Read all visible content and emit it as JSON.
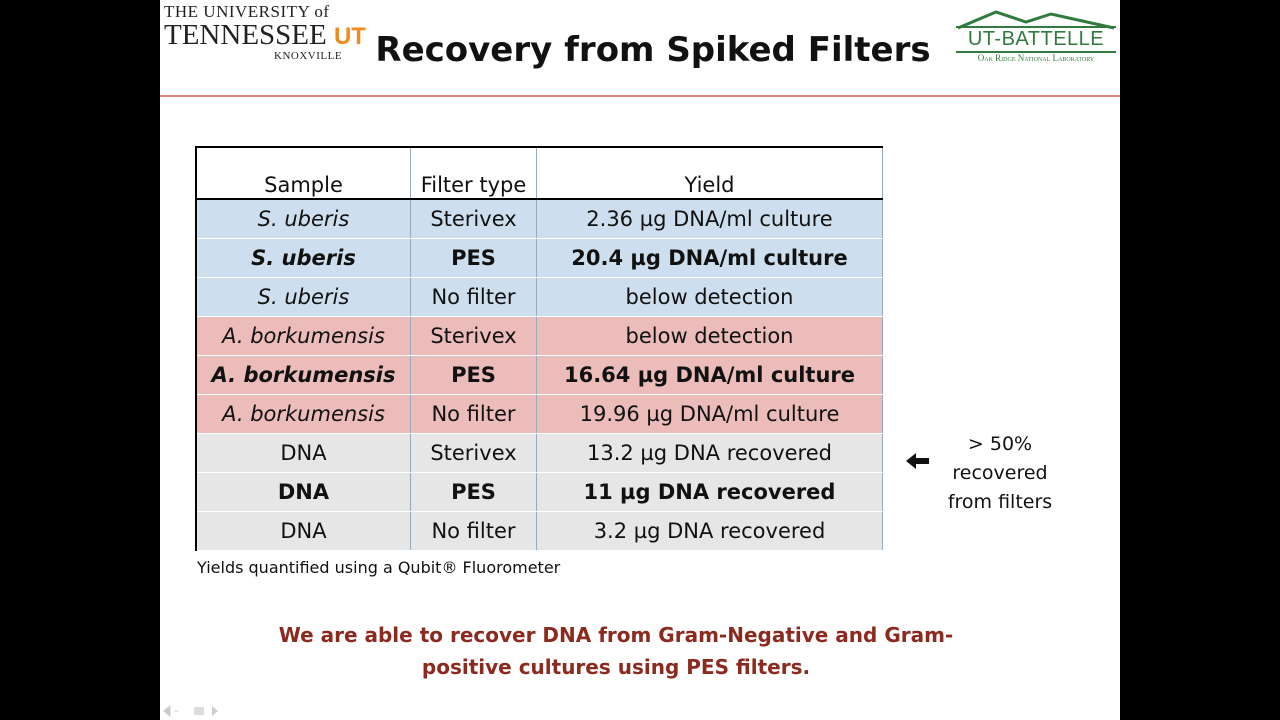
{
  "header": {
    "title": "Recovery from Spiked Filters",
    "left_logo": {
      "line1": "THE UNIVERSITY of",
      "line2": "TENNESSEE",
      "mark": "UT",
      "line3": "KNOXVILLE"
    },
    "right_logo": {
      "name": "UT-BATTELLE",
      "subtitle": "Oak Ridge National Laboratory"
    }
  },
  "table": {
    "columns": [
      "Sample",
      "Filter type",
      "Yield"
    ],
    "rows": [
      [
        "S. uberis",
        "Sterivex",
        "2.36 µg DNA/ml culture"
      ],
      [
        "S. uberis",
        "PES",
        "20.4 µg DNA/ml culture"
      ],
      [
        "S. uberis",
        "No filter",
        "below detection"
      ],
      [
        "A. borkumensis",
        "Sterivex",
        "below detection"
      ],
      [
        "A. borkumensis",
        "PES",
        "16.64 µg DNA/ml culture"
      ],
      [
        "A. borkumensis",
        "No filter",
        "19.96 µg DNA/ml culture"
      ],
      [
        "DNA",
        "Sterivex",
        "13.2 µg DNA recovered"
      ],
      [
        "DNA",
        "PES",
        "11 µg DNA recovered"
      ],
      [
        "DNA",
        "No filter",
        "3.2 µg DNA recovered"
      ]
    ]
  },
  "footnote": "Yields quantified using a Qubit® Fluorometer",
  "side_note": [
    "> 50%",
    "recovered",
    "from filters"
  ],
  "conclusion": [
    "We are able to recover DNA from Gram-Negative and Gram-",
    "positive cultures using PES filters."
  ]
}
